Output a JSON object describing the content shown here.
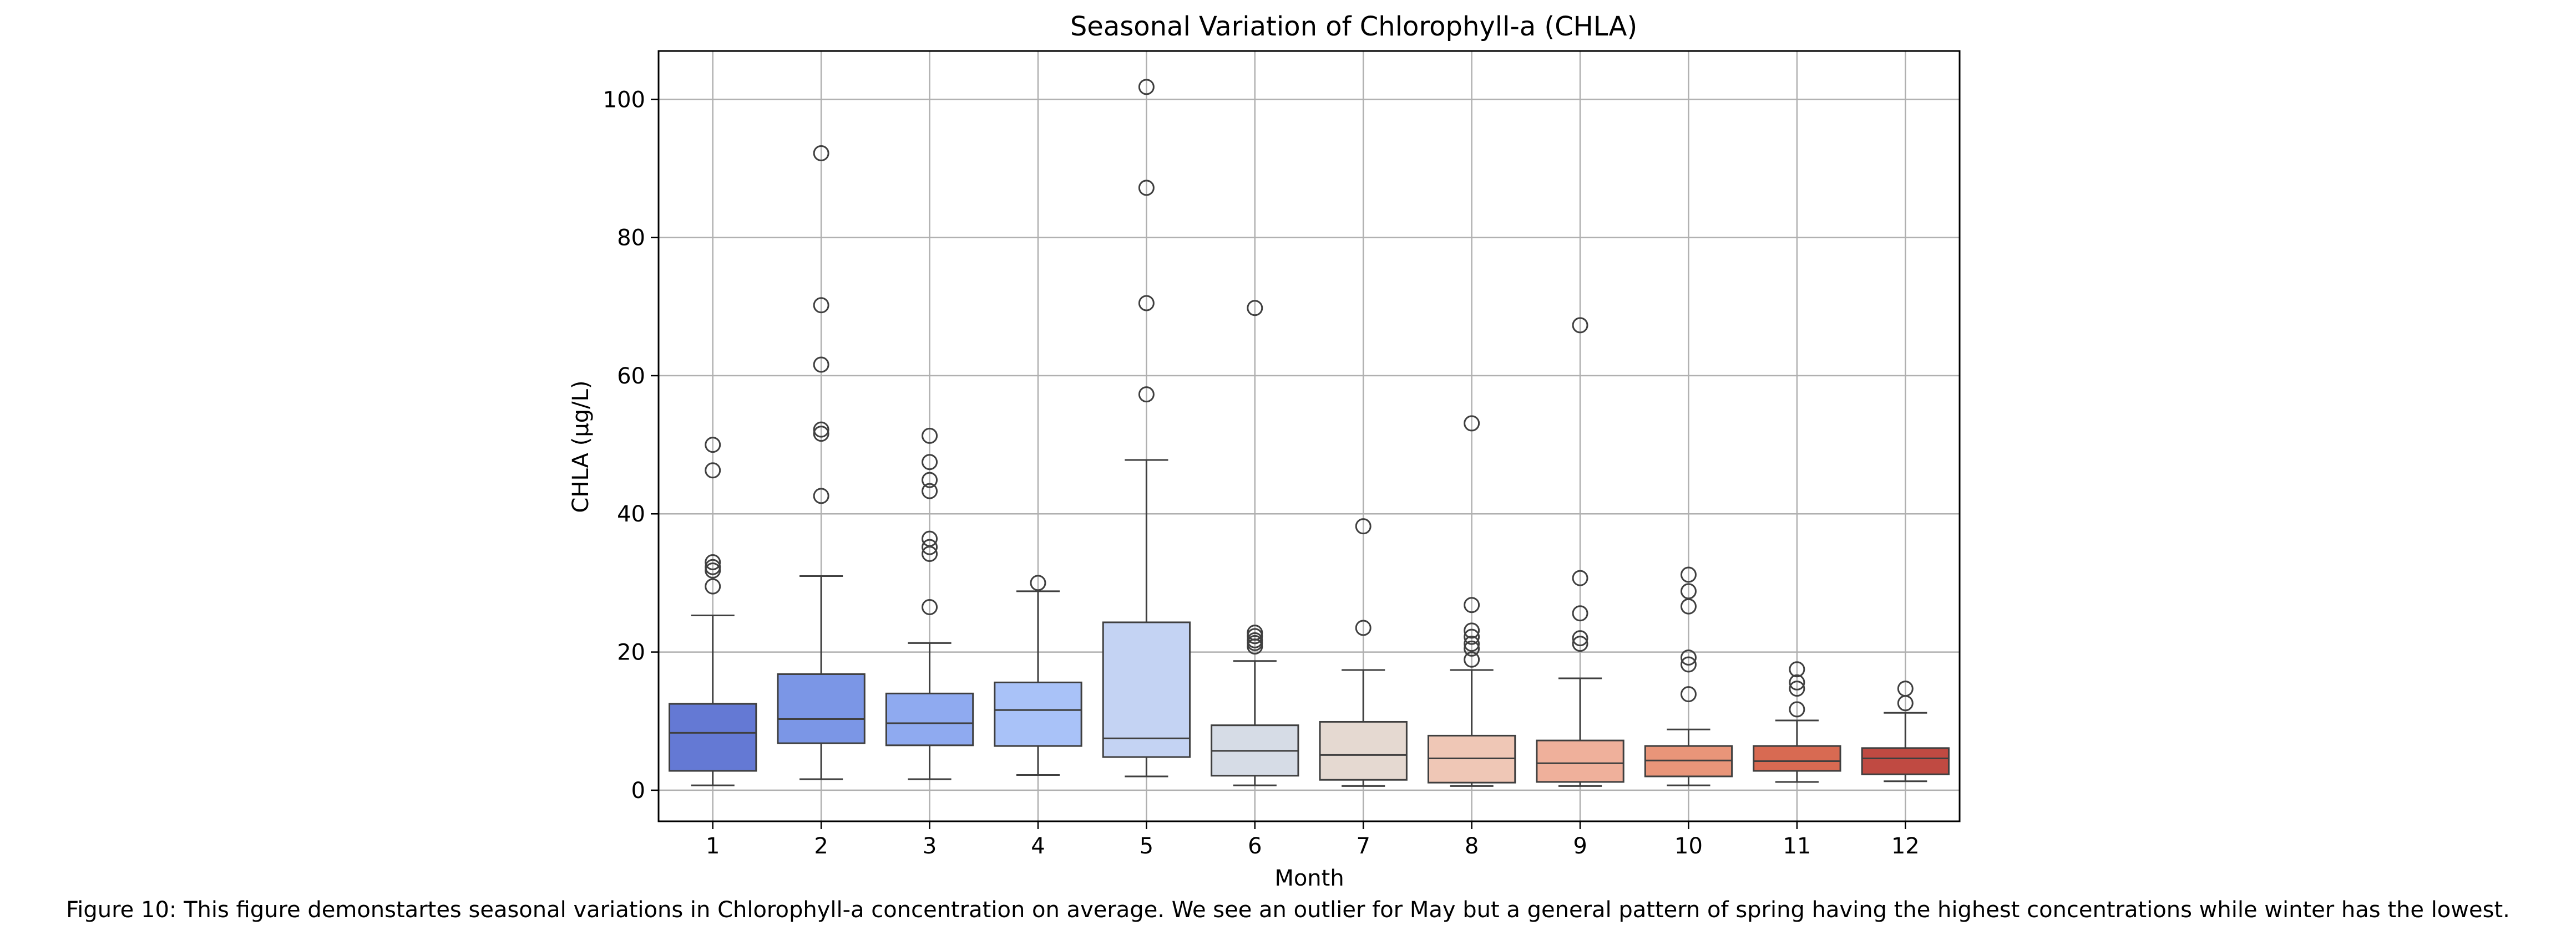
{
  "chart_data": {
    "type": "box",
    "title": "Seasonal Variation of Chlorophyll-a (CHLA)",
    "xlabel": "Month",
    "ylabel": "CHLA (µg/L)",
    "ylim": [
      -4.5,
      107
    ],
    "yticks": [
      0,
      20,
      40,
      60,
      80,
      100
    ],
    "grid": true,
    "categories": [
      "1",
      "2",
      "3",
      "4",
      "5",
      "6",
      "7",
      "8",
      "9",
      "10",
      "11",
      "12"
    ],
    "boxes": [
      {
        "month": "1",
        "whisker_low": 0.7,
        "q1": 2.8,
        "median": 8.3,
        "q3": 12.5,
        "whisker_high": 25.3,
        "outliers": [
          29.5,
          31.8,
          32.3,
          33.0,
          46.3,
          50.0
        ],
        "color": "#6479d4"
      },
      {
        "month": "2",
        "whisker_low": 1.6,
        "q1": 6.8,
        "median": 10.3,
        "q3": 16.8,
        "whisker_high": 31.0,
        "outliers": [
          42.6,
          51.6,
          52.2,
          61.6,
          70.2,
          92.2
        ],
        "color": "#7b96e6"
      },
      {
        "month": "3",
        "whisker_low": 1.6,
        "q1": 6.5,
        "median": 9.7,
        "q3": 14.0,
        "whisker_high": 21.3,
        "outliers": [
          26.5,
          34.2,
          35.2,
          36.4,
          43.3,
          44.9,
          47.5,
          51.3
        ],
        "color": "#8faaf0"
      },
      {
        "month": "4",
        "whisker_low": 2.2,
        "q1": 6.4,
        "median": 11.6,
        "q3": 15.6,
        "whisker_high": 28.8,
        "outliers": [
          30.0
        ],
        "color": "#a9c2f8"
      },
      {
        "month": "5",
        "whisker_low": 2.0,
        "q1": 4.8,
        "median": 7.5,
        "q3": 24.3,
        "whisker_high": 47.8,
        "outliers": [
          57.3,
          70.5,
          87.2,
          101.8
        ],
        "color": "#c4d3f3"
      },
      {
        "month": "6",
        "whisker_low": 0.7,
        "q1": 2.1,
        "median": 5.7,
        "q3": 9.4,
        "whisker_high": 18.7,
        "outliers": [
          20.8,
          21.3,
          21.7,
          22.3,
          22.8,
          69.8
        ],
        "color": "#d6dce6"
      },
      {
        "month": "7",
        "whisker_low": 0.6,
        "q1": 1.5,
        "median": 5.1,
        "q3": 9.9,
        "whisker_high": 17.4,
        "outliers": [
          23.5,
          38.2
        ],
        "color": "#e5d9d1"
      },
      {
        "month": "8",
        "whisker_low": 0.6,
        "q1": 1.1,
        "median": 4.6,
        "q3": 7.9,
        "whisker_high": 17.4,
        "outliers": [
          18.9,
          20.5,
          21.2,
          22.2,
          23.1,
          26.8,
          53.1
        ],
        "color": "#efc7b6"
      },
      {
        "month": "9",
        "whisker_low": 0.6,
        "q1": 1.2,
        "median": 3.9,
        "q3": 7.2,
        "whisker_high": 16.2,
        "outliers": [
          21.2,
          22.0,
          25.6,
          30.7,
          67.3
        ],
        "color": "#efb09b"
      },
      {
        "month": "10",
        "whisker_low": 0.7,
        "q1": 2.0,
        "median": 4.3,
        "q3": 6.4,
        "whisker_high": 8.8,
        "outliers": [
          13.9,
          18.2,
          19.2,
          26.6,
          28.8,
          31.2
        ],
        "color": "#e99579"
      },
      {
        "month": "11",
        "whisker_low": 1.2,
        "q1": 2.8,
        "median": 4.2,
        "q3": 6.4,
        "whisker_high": 10.1,
        "outliers": [
          11.7,
          14.7,
          15.6,
          17.5
        ],
        "color": "#d86a52"
      },
      {
        "month": "12",
        "whisker_low": 1.3,
        "q1": 2.3,
        "median": 4.6,
        "q3": 6.1,
        "whisker_high": 11.2,
        "outliers": [
          12.6,
          14.7
        ],
        "color": "#c04a42"
      }
    ]
  },
  "caption": "Figure 10: This figure demonstartes seasonal variations in Chlorophyll-a concentration on average. We see an outlier for May but a general pattern of spring having the highest concentrations while winter has the lowest."
}
